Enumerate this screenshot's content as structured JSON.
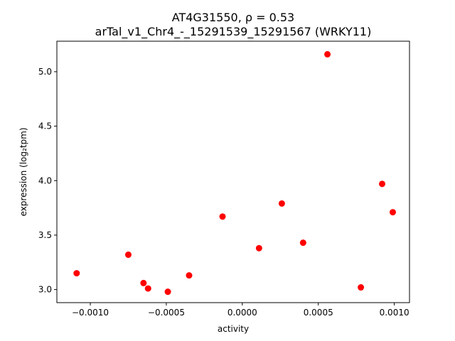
{
  "chart_data": {
    "type": "scatter",
    "title_line1": "AT4G31550, ρ = 0.53",
    "title_line2": "arTal_v1_Chr4_-_15291539_15291567 (WRKY11)",
    "xlabel": "activity",
    "ylabel": "expression (log₂tpm)",
    "xlim": [
      -0.00122,
      0.0011
    ],
    "ylim": [
      2.88,
      5.28
    ],
    "x_ticks": [
      -0.001,
      -0.0005,
      0.0,
      0.0005,
      0.001
    ],
    "x_tick_labels": [
      "−0.0010",
      "−0.0005",
      "0.0000",
      "0.0005",
      "0.0010"
    ],
    "y_ticks": [
      3.0,
      3.5,
      4.0,
      4.5,
      5.0
    ],
    "y_tick_labels": [
      "3.0",
      "3.5",
      "4.0",
      "4.5",
      "5.0"
    ],
    "grid": false,
    "marker_color": "#ff0000",
    "points": [
      {
        "x": -0.00109,
        "y": 3.15
      },
      {
        "x": -0.00075,
        "y": 3.32
      },
      {
        "x": -0.00065,
        "y": 3.06
      },
      {
        "x": -0.00062,
        "y": 3.01
      },
      {
        "x": -0.00049,
        "y": 2.98
      },
      {
        "x": -0.00035,
        "y": 3.13
      },
      {
        "x": -0.00013,
        "y": 3.67
      },
      {
        "x": 0.00011,
        "y": 3.38
      },
      {
        "x": 0.00026,
        "y": 3.79
      },
      {
        "x": 0.0004,
        "y": 3.43
      },
      {
        "x": 0.00056,
        "y": 5.16
      },
      {
        "x": 0.00078,
        "y": 3.02
      },
      {
        "x": 0.00092,
        "y": 3.97
      },
      {
        "x": 0.00099,
        "y": 3.71
      }
    ]
  }
}
